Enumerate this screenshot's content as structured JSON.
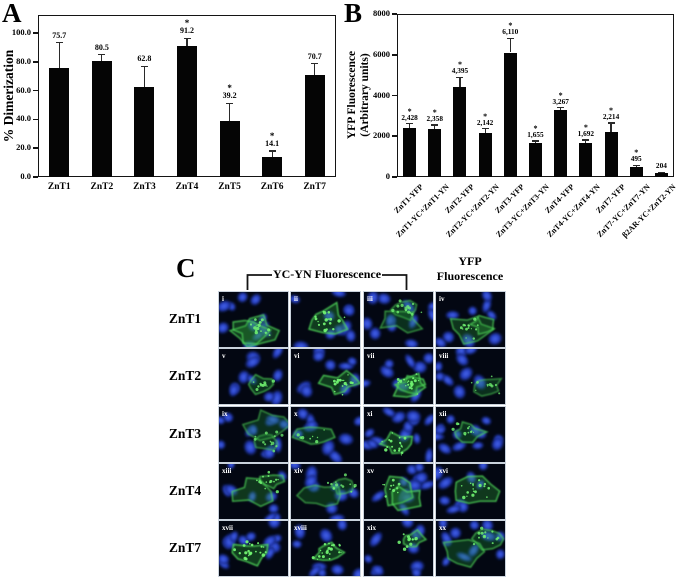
{
  "figure": {
    "panels": {
      "A": {
        "label": "A"
      },
      "B": {
        "label": "B"
      },
      "C": {
        "label": "C",
        "group_header": "YC-YN Fluorescence",
        "yfp_header_line1": "YFP",
        "yfp_header_line2": "Fluorescence",
        "rows": [
          {
            "label": "ZnT1",
            "cells": [
              "i",
              "ii",
              "iii",
              "iv"
            ]
          },
          {
            "label": "ZnT2",
            "cells": [
              "v",
              "vi",
              "vii",
              "viii"
            ]
          },
          {
            "label": "ZnT3",
            "cells": [
              "ix",
              "x",
              "xi",
              "xii"
            ]
          },
          {
            "label": "ZnT4",
            "cells": [
              "xiii",
              "xiv",
              "xv",
              "xvi"
            ]
          },
          {
            "label": "ZnT7",
            "cells": [
              "xvii",
              "xviii",
              "xix",
              "xx"
            ]
          }
        ],
        "image_colors": {
          "background": "#030712",
          "nucleus_outer": "#15277e",
          "nucleus_mid": "#2c49d4",
          "nucleus_core": "#4a66ea",
          "fluorescence_fill": "rgba(40,165,55,",
          "fluorescence_stroke": "rgba(80,220,90,",
          "puncta": "#72f472",
          "numeral_color": "#ffffff"
        }
      }
    }
  },
  "chart_data": [
    {
      "type": "bar",
      "panel": "A",
      "title": "",
      "categories": [
        "ZnT1",
        "ZnT2",
        "ZnT3",
        "ZnT4",
        "ZnT5",
        "ZnT6",
        "ZnT7"
      ],
      "values": [
        75.7,
        80.5,
        62.8,
        91.2,
        39.2,
        14.1,
        70.7
      ],
      "value_labels": [
        "75.7",
        "80.5",
        "62.8",
        "91.2",
        "39.2",
        "14.1",
        "70.7"
      ],
      "errors_plus": [
        17.5,
        4.5,
        14,
        5,
        12,
        4,
        8
      ],
      "significance": [
        false,
        false,
        false,
        true,
        true,
        true,
        false
      ],
      "significance_marker": "*",
      "xlabel": "",
      "ylabel_lines": [
        "% Dimerization"
      ],
      "yticks": [
        0,
        20,
        40,
        60,
        80,
        100
      ],
      "ytick_labels": [
        "0.0",
        "20.0",
        "40.0",
        "60.0",
        "80.0",
        "100.0"
      ],
      "ylim": [
        0,
        112.5
      ],
      "bar_color": "#000000",
      "grid": false,
      "legend": "none"
    },
    {
      "type": "bar",
      "panel": "B",
      "title": "",
      "categories": [
        "ZnT1-YFP",
        "ZnT1-YC+ZnT1-YN",
        "ZnT2-YFP",
        "ZnT2-YC+ZnT2-YN",
        "ZnT3-YFP",
        "ZnT3-YC+ZnT3-YN",
        "ZnT4-YFP",
        "ZnT4-YC+ZnT4-YN",
        "ZnT7-YFP",
        "ZnT7-YC+ZnT7-YN",
        "β2AR-YC+ZnT2-YN"
      ],
      "values": [
        2428,
        2358,
        4395,
        2142,
        6110,
        1655,
        3267,
        1692,
        2214,
        495,
        204
      ],
      "value_labels": [
        "2,428",
        "2,358",
        "4,395",
        "2,142",
        "6,110",
        "1,655",
        "3,267",
        "1,692",
        "2,214",
        "495",
        "204"
      ],
      "errors_plus": [
        180,
        190,
        500,
        220,
        700,
        110,
        140,
        120,
        440,
        70,
        25
      ],
      "significance": [
        true,
        true,
        true,
        true,
        true,
        true,
        true,
        true,
        true,
        true,
        false
      ],
      "significance_marker": "*",
      "xlabel": "",
      "ylabel_lines": [
        "YFP Fluorescence",
        "(Arbitrary units)"
      ],
      "yticks": [
        0,
        2000,
        4000,
        6000,
        8000
      ],
      "ytick_labels": [
        "0",
        "2000",
        "4000",
        "6000",
        "8000"
      ],
      "ylim": [
        0,
        8000
      ],
      "bar_color": "#000000",
      "grid": false,
      "legend": "none",
      "xtick_rotation": -45
    }
  ]
}
